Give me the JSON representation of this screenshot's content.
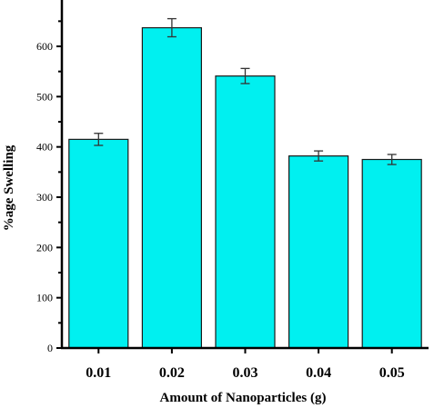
{
  "chart_data": {
    "type": "bar",
    "categories": [
      "0.01",
      "0.02",
      "0.03",
      "0.04",
      "0.05"
    ],
    "values": [
      415,
      637,
      541,
      382,
      375
    ],
    "errors": [
      12,
      18,
      15,
      10,
      10
    ],
    "xlabel": "Amount of Nanoparticles (g)",
    "ylabel": "%age Swelling",
    "ylim": [
      0,
      700
    ],
    "yticks": [
      0,
      100,
      200,
      300,
      400,
      500,
      600
    ],
    "grid": false,
    "bar_color": "#00f0f0"
  }
}
